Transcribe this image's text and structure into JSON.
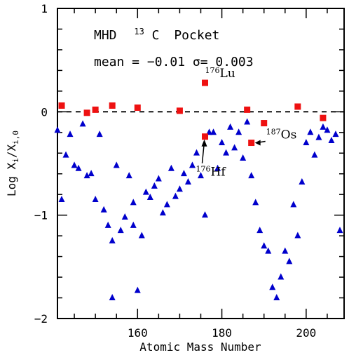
{
  "chart_data": {
    "type": "scatter",
    "title": "MHD",
    "subtitle": "Pocket",
    "subtitle_isotope_mass": "13",
    "subtitle_isotope_symbol": "C",
    "stats_text": "mean = −0.01 σ= 0.003",
    "xlabel": "Atomic Mass Number",
    "ylabel": "Log X",
    "ylabel_sub": "i",
    "ylabel_rest": "/X",
    "ylabel_sub2": "i,0",
    "xlim": [
      141,
      209
    ],
    "ylim": [
      -2,
      1
    ],
    "xticks": [
      160,
      180,
      200
    ],
    "xtick_labels": [
      "160",
      "180",
      "200"
    ],
    "yticks": [
      -2,
      -1,
      0,
      1
    ],
    "ytick_labels": [
      "−2",
      "−1",
      "0",
      "1"
    ],
    "reference_line": 0,
    "series": [
      {
        "marker": "triangle",
        "color": "#0000cc",
        "points": [
          [
            141,
            -0.18
          ],
          [
            142,
            -0.85
          ],
          [
            143,
            -0.42
          ],
          [
            144,
            -0.22
          ],
          [
            145,
            -0.52
          ],
          [
            146,
            -0.55
          ],
          [
            147,
            -0.12
          ],
          [
            148,
            -0.62
          ],
          [
            149,
            -0.6
          ],
          [
            150,
            -0.85
          ],
          [
            151,
            -0.22
          ],
          [
            152,
            -0.95
          ],
          [
            153,
            -1.1
          ],
          [
            154,
            -1.25
          ],
          [
            154,
            -1.8
          ],
          [
            155,
            -0.52
          ],
          [
            156,
            -1.15
          ],
          [
            157,
            -1.02
          ],
          [
            158,
            -0.62
          ],
          [
            159,
            -0.88
          ],
          [
            159,
            -1.1
          ],
          [
            160,
            -1.73
          ],
          [
            161,
            -1.2
          ],
          [
            162,
            -0.78
          ],
          [
            163,
            -0.83
          ],
          [
            164,
            -0.72
          ],
          [
            165,
            -0.65
          ],
          [
            166,
            -0.98
          ],
          [
            167,
            -0.9
          ],
          [
            168,
            -0.55
          ],
          [
            169,
            -0.82
          ],
          [
            170,
            -0.75
          ],
          [
            171,
            -0.6
          ],
          [
            172,
            -0.68
          ],
          [
            173,
            -0.52
          ],
          [
            174,
            -0.4
          ],
          [
            175,
            -0.62
          ],
          [
            176,
            -1.0
          ],
          [
            177,
            -0.2
          ],
          [
            178,
            -0.2
          ],
          [
            179,
            -0.55
          ],
          [
            180,
            -0.3
          ],
          [
            181,
            -0.4
          ],
          [
            182,
            -0.15
          ],
          [
            183,
            -0.35
          ],
          [
            184,
            -0.2
          ],
          [
            185,
            -0.45
          ],
          [
            186,
            -0.1
          ],
          [
            187,
            -0.62
          ],
          [
            188,
            -0.88
          ],
          [
            189,
            -1.15
          ],
          [
            190,
            -1.3
          ],
          [
            191,
            -1.35
          ],
          [
            192,
            -1.7
          ],
          [
            193,
            -1.8
          ],
          [
            194,
            -1.6
          ],
          [
            195,
            -1.35
          ],
          [
            196,
            -1.45
          ],
          [
            197,
            -0.9
          ],
          [
            198,
            -1.2
          ],
          [
            199,
            -0.68
          ],
          [
            200,
            -0.3
          ],
          [
            201,
            -0.2
          ],
          [
            202,
            -0.42
          ],
          [
            203,
            -0.25
          ],
          [
            204,
            -0.15
          ],
          [
            205,
            -0.18
          ],
          [
            206,
            -0.28
          ],
          [
            207,
            -0.22
          ],
          [
            208,
            -1.15
          ]
        ]
      },
      {
        "marker": "square",
        "color": "#ee1111",
        "points": [
          [
            142,
            0.06
          ],
          [
            148,
            -0.01
          ],
          [
            150,
            0.02
          ],
          [
            154,
            0.06
          ],
          [
            160,
            0.04
          ],
          [
            170,
            0.01
          ],
          [
            176,
            0.28
          ],
          [
            176,
            -0.24
          ],
          [
            186,
            0.02
          ],
          [
            187,
            -0.3
          ],
          [
            190,
            -0.11
          ],
          [
            198,
            0.05
          ],
          [
            204,
            -0.06
          ]
        ]
      }
    ],
    "annotations": [
      {
        "mass": "176",
        "symbol": "Lu",
        "x": 176,
        "y": 0.28,
        "pos": "above"
      },
      {
        "mass": "176",
        "symbol": "Hf",
        "x": 176,
        "y": -0.24,
        "pos": "below-arrow"
      },
      {
        "mass": "187",
        "symbol": "Os",
        "x": 187,
        "y": -0.3,
        "pos": "right-arrow"
      }
    ]
  }
}
